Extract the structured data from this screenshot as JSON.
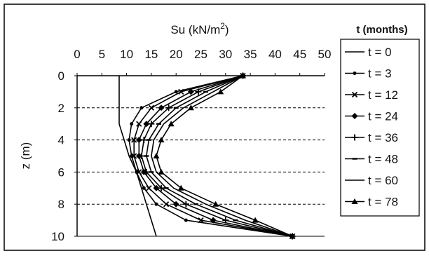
{
  "chart_data": {
    "type": "line",
    "orientation": "profile",
    "xlabel_prefix": "Su (kN/m",
    "xlabel_exp": "2",
    "xlabel_suffix": ")",
    "ylabel": "z (m)",
    "xlim": [
      0,
      50
    ],
    "ylim": [
      0,
      10
    ],
    "y_inverted": true,
    "x_axis_position": "top",
    "x_ticks": [
      0,
      5,
      10,
      15,
      20,
      25,
      30,
      35,
      40,
      45,
      50
    ],
    "y_ticks": [
      0,
      2,
      4,
      6,
      8,
      10
    ],
    "gridlines_y": [
      2,
      4,
      6,
      8
    ],
    "legend_title": "t  (months)",
    "legend_placement": "right",
    "series": [
      {
        "name": "t = 0",
        "marker": "none",
        "points": [
          [
            8.5,
            0
          ],
          [
            8.5,
            1
          ],
          [
            8.5,
            2
          ],
          [
            8.5,
            3
          ],
          [
            9.5,
            4
          ],
          [
            10.5,
            5
          ],
          [
            12,
            6
          ],
          [
            13,
            7
          ],
          [
            14,
            8
          ],
          [
            15,
            9
          ],
          [
            16,
            10
          ]
        ]
      },
      {
        "name": "t = 3",
        "marker": "dot",
        "points": [
          [
            33.5,
            0
          ],
          [
            20,
            1
          ],
          [
            13,
            2
          ],
          [
            11,
            3
          ],
          [
            10.5,
            4
          ],
          [
            11,
            5
          ],
          [
            12,
            6
          ],
          [
            13.5,
            7
          ],
          [
            16,
            8
          ],
          [
            22,
            9
          ],
          [
            43.5,
            10
          ]
        ]
      },
      {
        "name": "t = 12",
        "marker": "x",
        "points": [
          [
            33.5,
            0
          ],
          [
            21,
            1
          ],
          [
            15,
            2
          ],
          [
            12.5,
            3
          ],
          [
            11.5,
            4
          ],
          [
            11.5,
            5
          ],
          [
            12.5,
            6
          ],
          [
            14.5,
            7
          ],
          [
            18,
            8
          ],
          [
            25,
            9
          ],
          [
            43.5,
            10
          ]
        ]
      },
      {
        "name": "t = 24",
        "marker": "diamond",
        "points": [
          [
            33.5,
            0
          ],
          [
            23,
            1
          ],
          [
            17,
            2
          ],
          [
            14,
            3
          ],
          [
            12.5,
            4
          ],
          [
            12.5,
            5
          ],
          [
            13.5,
            6
          ],
          [
            16,
            7
          ],
          [
            20,
            8
          ],
          [
            27.5,
            9
          ],
          [
            43.5,
            10
          ]
        ]
      },
      {
        "name": "t = 36",
        "marker": "plus",
        "points": [
          [
            33.5,
            0
          ],
          [
            24.5,
            1
          ],
          [
            18.5,
            2
          ],
          [
            15,
            3
          ],
          [
            13.5,
            4
          ],
          [
            13,
            5
          ],
          [
            14,
            6
          ],
          [
            17,
            7
          ],
          [
            22,
            8
          ],
          [
            30,
            9
          ],
          [
            43.5,
            10
          ]
        ]
      },
      {
        "name": "t = 48",
        "marker": "dash",
        "points": [
          [
            33.5,
            0
          ],
          [
            26,
            1
          ],
          [
            20,
            2
          ],
          [
            16.5,
            3
          ],
          [
            14.5,
            4
          ],
          [
            14,
            5
          ],
          [
            15,
            6
          ],
          [
            18,
            7
          ],
          [
            24,
            8
          ],
          [
            32,
            9
          ],
          [
            43.5,
            10
          ]
        ]
      },
      {
        "name": "t = 60",
        "marker": "none",
        "points": [
          [
            33.5,
            0
          ],
          [
            27.5,
            1
          ],
          [
            21.5,
            2
          ],
          [
            17.5,
            3
          ],
          [
            15.5,
            4
          ],
          [
            15,
            5
          ],
          [
            16,
            6
          ],
          [
            19.5,
            7
          ],
          [
            26,
            8
          ],
          [
            34,
            9
          ],
          [
            43.5,
            10
          ]
        ]
      },
      {
        "name": "t = 78",
        "marker": "triangle",
        "points": [
          [
            33.5,
            0
          ],
          [
            29,
            1
          ],
          [
            23,
            2
          ],
          [
            19,
            3
          ],
          [
            17,
            4
          ],
          [
            16,
            5
          ],
          [
            17,
            6
          ],
          [
            21,
            7
          ],
          [
            28,
            8
          ],
          [
            36,
            9
          ],
          [
            43.5,
            10
          ]
        ]
      }
    ]
  }
}
